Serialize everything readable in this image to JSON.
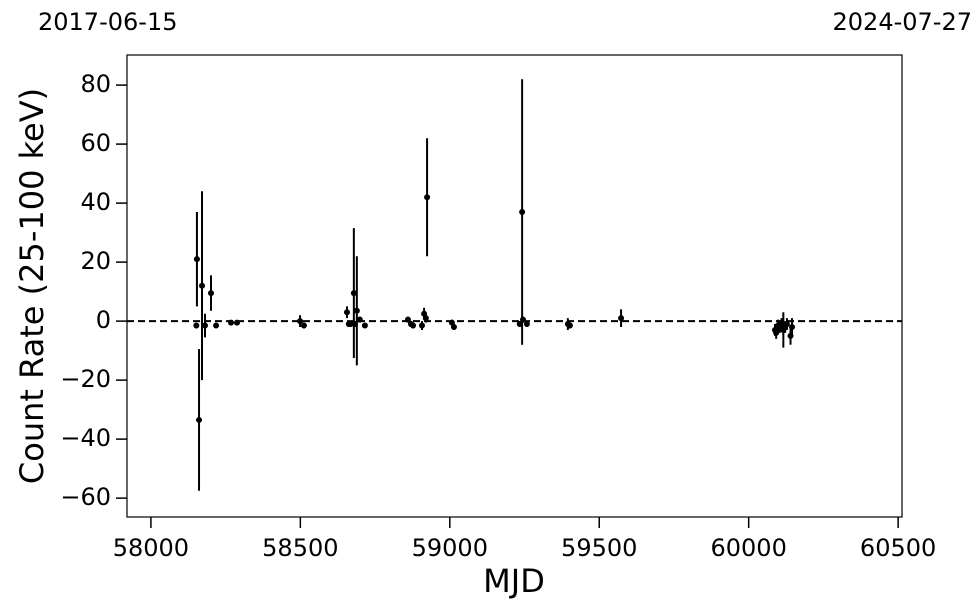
{
  "chart_data": {
    "type": "errorbar",
    "xlabel": "MJD",
    "ylabel": "Count Rate (25-100 keV)",
    "date_start": "2017-06-15",
    "date_end": "2024-07-27",
    "color": "#000000",
    "hline": 0,
    "xlim": [
      57920,
      60513
    ],
    "ylim": [
      -66.4,
      90.2
    ],
    "xticks": [
      58000,
      58500,
      59000,
      59500,
      60000,
      60500
    ],
    "yticks": [
      {
        "value": -60,
        "label": "−60"
      },
      {
        "value": -40,
        "label": "−40"
      },
      {
        "value": -20,
        "label": "−20"
      },
      0,
      20,
      40,
      60,
      80
    ],
    "x": [
      58154,
      58161,
      58171,
      58201,
      58152,
      58181,
      58218,
      58268,
      58288,
      58499,
      58512,
      58656,
      58662,
      58668,
      58679,
      58689,
      58683,
      58699,
      58716,
      58860,
      58870,
      58877,
      58907,
      58914,
      58920,
      58924,
      59007,
      59014,
      59234,
      59242,
      59245,
      59258,
      59395,
      59402,
      59573,
      60088,
      60092,
      60098,
      60104,
      60110,
      60116,
      60122,
      60128,
      60140,
      60145
    ],
    "values": [
      21,
      -33.5,
      12,
      9.5,
      -1.5,
      -1.5,
      -1.5,
      -0.5,
      -0.5,
      0,
      -1.5,
      3,
      -1,
      -1,
      9.5,
      3.5,
      -1,
      0.5,
      -1.5,
      0.5,
      -1,
      -1.5,
      -1.5,
      2.5,
      1,
      42,
      -0.5,
      -2,
      -1,
      37,
      0.5,
      -1,
      -1,
      -1.5,
      1,
      -3,
      -4,
      -1.5,
      -2,
      -1,
      -3,
      -2,
      -1,
      -5,
      -2
    ],
    "errors": [
      16,
      24,
      32,
      6,
      1,
      4,
      0.5,
      0.5,
      0.5,
      2,
      1,
      2,
      1,
      1,
      22,
      18.5,
      1,
      1,
      0.5,
      1,
      1,
      1,
      1.5,
      2,
      1.5,
      20,
      1,
      1,
      1,
      45,
      1,
      1,
      2,
      1,
      3,
      2,
      2,
      2,
      2,
      2,
      6,
      2,
      2,
      3,
      3
    ]
  }
}
